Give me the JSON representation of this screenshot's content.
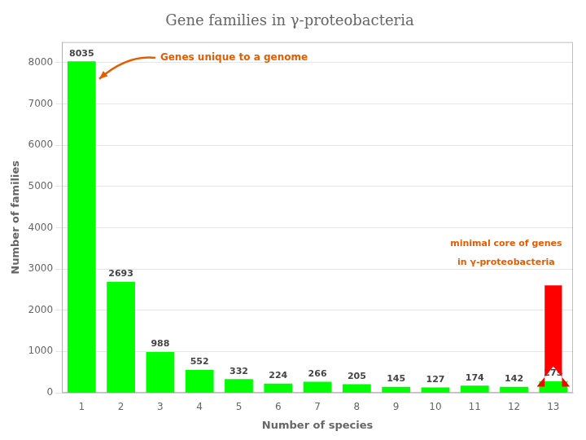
{
  "chart_data": {
    "type": "bar",
    "title": "Gene families in γ-proteobacteria",
    "xlabel": "Number of species",
    "ylabel": "Number of families",
    "categories": [
      1,
      2,
      3,
      4,
      5,
      6,
      7,
      8,
      9,
      10,
      11,
      12,
      13
    ],
    "values": [
      8035,
      2693,
      988,
      552,
      332,
      224,
      266,
      205,
      145,
      127,
      174,
      142,
      275
    ],
    "color": "#00ff00",
    "ylim": [
      0,
      8500
    ],
    "yticks": [
      0,
      1000,
      2000,
      3000,
      4000,
      5000,
      6000,
      7000,
      8000
    ],
    "grid": true,
    "data_labels": true,
    "annotations": [
      "Genes unique to a genome",
      "minimal core of genes",
      "in γ-proteobacteria"
    ]
  }
}
